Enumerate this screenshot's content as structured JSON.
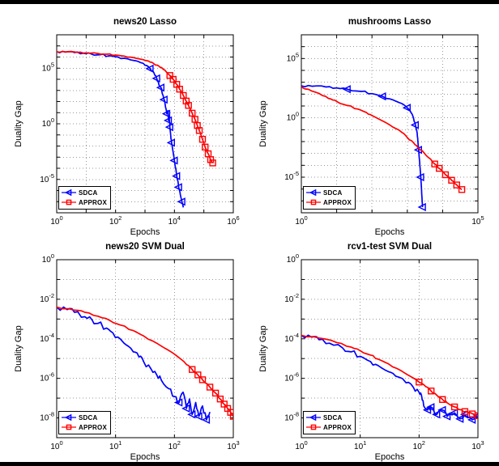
{
  "figure": {
    "background": "#ffffff",
    "frame_color": "#000000"
  },
  "colors": {
    "sdca": "#0000FF",
    "approx": "#FF0000",
    "grid": "#999999"
  },
  "chart_data": [
    {
      "type": "line",
      "title": "news20 Lasso",
      "xlabel": "Epochs",
      "ylabel": "Duality Gap",
      "xscale": "log",
      "yscale": "log",
      "grid": true,
      "xlim": [
        1,
        1000000
      ],
      "ylim": [
        1e-08,
        100000000.0
      ],
      "xticks": [
        1,
        100,
        10000,
        1000000
      ],
      "yticks": [
        100000,
        1,
        1e-05
      ],
      "legend_position": "southwest",
      "series": [
        {
          "name": "SDCA",
          "color": "#0000FF",
          "marker": "triangle-left",
          "noise": 0.1,
          "marker_start": 12,
          "marker_every": 2,
          "points": [
            [
              1,
              3000000.0
            ],
            [
              2,
              2800000.0
            ],
            [
              4,
              2500000.0
            ],
            [
              8,
              2200000.0
            ],
            [
              15,
              1900000.0
            ],
            [
              30,
              1600000.0
            ],
            [
              60,
              1300000.0
            ],
            [
              120,
              1000000.0
            ],
            [
              250,
              700000.0
            ],
            [
              400,
              500000.0
            ],
            [
              700,
              320000.0
            ],
            [
              1000,
              180000.0
            ],
            [
              1500,
              90000.0
            ],
            [
              2000,
              40000.0
            ],
            [
              2500,
              12000.0
            ],
            [
              3000,
              3000.0
            ],
            [
              3500,
              1800.0
            ],
            [
              4000,
              400.0
            ],
            [
              4500,
              150.0
            ],
            [
              5000,
              30
            ],
            [
              5500,
              8
            ],
            [
              6000,
              15
            ],
            [
              6300,
              2
            ],
            [
              6600,
              5
            ],
            [
              7000,
              0.5
            ],
            [
              7500,
              0.08
            ],
            [
              8000,
              0.02
            ],
            [
              9000,
              0.003
            ],
            [
              10000,
              0.0005
            ],
            [
              11000,
              0.0001
            ],
            [
              12000,
              2e-05
            ],
            [
              13000,
              8e-06
            ],
            [
              14000,
              2e-06
            ],
            [
              16000,
              4e-07
            ],
            [
              18000,
              1e-07
            ],
            [
              20000,
              3e-08
            ]
          ]
        },
        {
          "name": "APPROX",
          "color": "#FF0000",
          "marker": "square",
          "noise": 0.05,
          "marker_start": 16,
          "marker_every": 1,
          "points": [
            [
              1,
              3000000.0
            ],
            [
              2,
              2900000.0
            ],
            [
              5,
              2600000.0
            ],
            [
              10,
              2400000.0
            ],
            [
              25,
              2100000.0
            ],
            [
              50,
              1800000.0
            ],
            [
              100,
              1500000.0
            ],
            [
              200,
              1200000.0
            ],
            [
              400,
              900000.0
            ],
            [
              700,
              650000.0
            ],
            [
              1000,
              500000.0
            ],
            [
              1500,
              350000.0
            ],
            [
              2000,
              250000.0
            ],
            [
              3000,
              150000.0
            ],
            [
              4000,
              90000.0
            ],
            [
              5000,
              55000.0
            ],
            [
              7000,
              22000.0
            ],
            [
              9000,
              10000.0
            ],
            [
              12000,
              3500.0
            ],
            [
              15000,
              1300.0
            ],
            [
              20000,
              350.0
            ],
            [
              25000,
              110.0
            ],
            [
              30000,
              45
            ],
            [
              40000,
              9
            ],
            [
              50000,
              2.5
            ],
            [
              60000,
              0.7
            ],
            [
              70000,
              0.25
            ],
            [
              90000,
              0.04
            ],
            [
              110000,
              0.008
            ],
            [
              140000,
              0.002
            ],
            [
              170000,
              0.0006
            ],
            [
              200000,
              0.0003
            ]
          ]
        }
      ]
    },
    {
      "type": "line",
      "title": "mushrooms Lasso",
      "xlabel": "Epochs",
      "ylabel": "Duality Gap",
      "xscale": "log",
      "yscale": "log",
      "grid": true,
      "xlim": [
        1,
        100000
      ],
      "ylim": [
        1e-08,
        10000000.0
      ],
      "xticks": [
        1,
        100000
      ],
      "yticks": [
        100000,
        1,
        1e-05
      ],
      "legend_position": "southwest",
      "series": [
        {
          "name": "SDCA",
          "color": "#0000FF",
          "marker": "triangle-left",
          "noise": 0.08,
          "marker_start": 4,
          "marker_every": 3,
          "points": [
            [
              1,
              500.0
            ],
            [
              2,
              460.0
            ],
            [
              5,
              400.0
            ],
            [
              10,
              330.0
            ],
            [
              20,
              260.0
            ],
            [
              50,
              170.0
            ],
            [
              100,
              110.0
            ],
            [
              200,
              65
            ],
            [
              400,
              32
            ],
            [
              700,
              16
            ],
            [
              1000,
              7
            ],
            [
              1300,
              2.5
            ],
            [
              1500,
              0.9
            ],
            [
              1700,
              0.25
            ],
            [
              1900,
              0.05
            ],
            [
              2000,
              0.01
            ],
            [
              2100,
              0.002
            ],
            [
              2200,
              0.00035
            ],
            [
              2300,
              6e-05
            ],
            [
              2400,
              1e-05
            ],
            [
              2500,
              1.5e-06
            ],
            [
              2600,
              2e-07
            ],
            [
              2700,
              3e-08
            ]
          ]
        },
        {
          "name": "APPROX",
          "color": "#FF0000",
          "marker": "square",
          "noise": 0.06,
          "marker_start": 17,
          "marker_every": 1,
          "points": [
            [
              1,
              400.0
            ],
            [
              2,
              180.0
            ],
            [
              4,
              75
            ],
            [
              7,
              38
            ],
            [
              10,
              24
            ],
            [
              20,
              11
            ],
            [
              40,
              5.5
            ],
            [
              70,
              2.8
            ],
            [
              100,
              1.6
            ],
            [
              200,
              0.55
            ],
            [
              400,
              0.16
            ],
            [
              700,
              0.06
            ],
            [
              1000,
              0.022
            ],
            [
              1500,
              0.008
            ],
            [
              2000,
              0.0032
            ],
            [
              3000,
              0.0011
            ],
            [
              4000,
              0.00045
            ],
            [
              6000,
              0.00013
            ],
            [
              8000,
              5.5e-05
            ],
            [
              12000,
              1.6e-05
            ],
            [
              18000,
              5.5e-06
            ],
            [
              25000,
              2.2e-06
            ],
            [
              35000,
              9e-07
            ]
          ]
        }
      ]
    },
    {
      "type": "line",
      "title": "news20 SVM Dual",
      "xlabel": "Epochs",
      "ylabel": "Duality Gap",
      "xscale": "log",
      "yscale": "log",
      "grid": true,
      "xlim": [
        1,
        1000
      ],
      "ylim": [
        1e-09,
        1
      ],
      "xticks": [
        1,
        10,
        100,
        1000
      ],
      "yticks": [
        1,
        0.01,
        0.0001,
        1e-06,
        1e-08
      ],
      "legend_position": "southwest",
      "series": [
        {
          "name": "SDCA",
          "color": "#0000FF",
          "marker": "triangle-left",
          "noise": 0.15,
          "marker_start": 18,
          "marker_every": 2,
          "points": [
            [
              1,
              0.004
            ],
            [
              1.5,
              0.003
            ],
            [
              2,
              0.0022
            ],
            [
              3,
              0.0013
            ],
            [
              4,
              0.0009
            ],
            [
              5,
              0.0006
            ],
            [
              7,
              0.00035
            ],
            [
              9,
              0.0002
            ],
            [
              12,
              0.0001
            ],
            [
              15,
              5e-05
            ],
            [
              20,
              2.2e-05
            ],
            [
              25,
              1.2e-05
            ],
            [
              30,
              7e-06
            ],
            [
              40,
              3e-06
            ],
            [
              50,
              1.5e-06
            ],
            [
              60,
              8e-07
            ],
            [
              80,
              3e-07
            ],
            [
              100,
              1.2e-07
            ],
            [
              120,
              6e-08
            ],
            [
              140,
              2e-07
            ],
            [
              160,
              3e-08
            ],
            [
              180,
              9e-08
            ],
            [
              200,
              1.5e-08
            ],
            [
              230,
              6e-08
            ],
            [
              260,
              1.2e-08
            ],
            [
              300,
              4e-08
            ],
            [
              350,
              8e-09
            ],
            [
              400,
              2e-08
            ]
          ]
        },
        {
          "name": "APPROX",
          "color": "#FF0000",
          "marker": "square",
          "noise": 0.04,
          "marker_start": 12,
          "marker_every": 1,
          "points": [
            [
              1,
              0.004
            ],
            [
              2,
              0.0028
            ],
            [
              3,
              0.0022
            ],
            [
              5,
              0.0014
            ],
            [
              8,
              0.00085
            ],
            [
              12,
              0.0005
            ],
            [
              20,
              0.00026
            ],
            [
              30,
              0.00014
            ],
            [
              50,
              6e-05
            ],
            [
              80,
              2.6e-05
            ],
            [
              120,
              1.1e-05
            ],
            [
              160,
              5e-06
            ],
            [
              200,
              2.8e-06
            ],
            [
              250,
              1.5e-06
            ],
            [
              300,
              8.5e-07
            ],
            [
              400,
              3.6e-07
            ],
            [
              500,
              1.8e-07
            ],
            [
              600,
              9e-08
            ],
            [
              700,
              5e-08
            ],
            [
              800,
              3e-08
            ],
            [
              900,
              1.9e-08
            ],
            [
              1000,
              1.2e-08
            ]
          ]
        }
      ]
    },
    {
      "type": "line",
      "title": "rcv1-test SVM Dual",
      "xlabel": "Epochs",
      "ylabel": "Duality Gap",
      "xscale": "log",
      "yscale": "log",
      "grid": true,
      "xlim": [
        1,
        1000
      ],
      "ylim": [
        1e-09,
        1
      ],
      "xticks": [
        1,
        10,
        100,
        1000
      ],
      "yticks": [
        1,
        0.01,
        0.0001,
        1e-06,
        1e-08
      ],
      "legend_position": "southwest",
      "series": [
        {
          "name": "SDCA",
          "color": "#0000FF",
          "marker": "triangle-left",
          "noise": 0.12,
          "marker_start": 16,
          "marker_every": 1,
          "points": [
            [
              1,
              0.00015
            ],
            [
              1.5,
              0.00012
            ],
            [
              2,
              9e-05
            ],
            [
              3,
              6e-05
            ],
            [
              5,
              3.5e-05
            ],
            [
              7,
              2.2e-05
            ],
            [
              10,
              1.3e-05
            ],
            [
              15,
              7e-06
            ],
            [
              20,
              4.5e-06
            ],
            [
              30,
              2.2e-06
            ],
            [
              40,
              1.3e-06
            ],
            [
              60,
              6e-07
            ],
            [
              80,
              3.5e-07
            ],
            [
              100,
              2e-07
            ],
            [
              110,
              1.4e-07
            ],
            [
              120,
              4e-08
            ],
            [
              140,
              2.5e-08
            ],
            [
              160,
              3.5e-08
            ],
            [
              200,
              1.5e-08
            ],
            [
              250,
              2.5e-08
            ],
            [
              300,
              1.2e-08
            ],
            [
              400,
              1.8e-08
            ],
            [
              500,
              9e-09
            ],
            [
              600,
              1.5e-08
            ],
            [
              800,
              8e-09
            ],
            [
              1000,
              1.3e-08
            ]
          ]
        },
        {
          "name": "APPROX",
          "color": "#FF0000",
          "marker": "square",
          "noise": 0.04,
          "marker_start": 10,
          "marker_every": 2,
          "points": [
            [
              1,
              0.00015
            ],
            [
              2,
              0.00011
            ],
            [
              4,
              6.5e-05
            ],
            [
              7,
              3.8e-05
            ],
            [
              10,
              2.5e-05
            ],
            [
              15,
              1.5e-05
            ],
            [
              20,
              9.5e-06
            ],
            [
              30,
              5.5e-06
            ],
            [
              50,
              2.4e-06
            ],
            [
              70,
              1.3e-06
            ],
            [
              100,
              6.5e-07
            ],
            [
              130,
              3.8e-07
            ],
            [
              160,
              2.3e-07
            ],
            [
              200,
              1.4e-07
            ],
            [
              250,
              8.5e-08
            ],
            [
              300,
              5.8e-08
            ],
            [
              400,
              3.6e-08
            ],
            [
              500,
              2.6e-08
            ],
            [
              600,
              2.1e-08
            ],
            [
              700,
              1.8e-08
            ],
            [
              800,
              1.6e-08
            ],
            [
              900,
              1.4e-08
            ],
            [
              1000,
              1.3e-08
            ]
          ]
        }
      ]
    }
  ]
}
